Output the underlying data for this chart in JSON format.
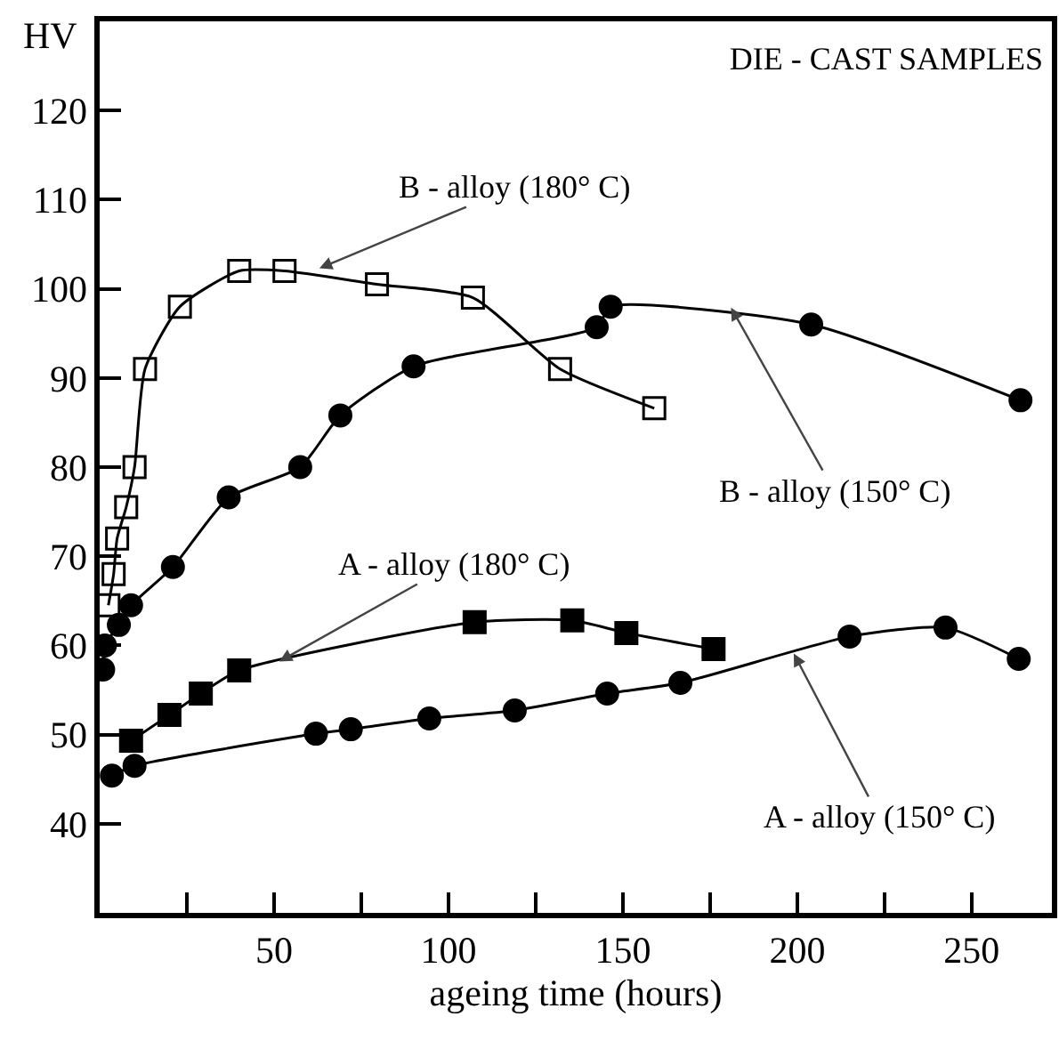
{
  "chart_data": {
    "type": "line",
    "title": "DIE - CAST SAMPLES",
    "xlabel": "ageing time (hours)",
    "ylabel": "HV",
    "xlim": [
      0,
      273
    ],
    "ylim": [
      30,
      130
    ],
    "xticks": [
      {
        "value": 25,
        "label": null
      },
      50,
      {
        "value": 75,
        "label": null
      },
      100,
      {
        "value": 125,
        "label": null
      },
      150,
      {
        "value": 175,
        "label": null
      },
      200,
      {
        "value": 225,
        "label": null
      },
      250
    ],
    "yticks": [
      40,
      50,
      60,
      70,
      80,
      90,
      100,
      110,
      120
    ],
    "series": [
      {
        "color": "#000000",
        "marker": "square-open",
        "x": [
          2.5,
          4,
          5,
          7.6,
          10,
          13,
          23,
          40,
          53,
          79.5,
          107,
          132,
          159
        ],
        "values": [
          64.5,
          68,
          72,
          75.5,
          80,
          91,
          98,
          102,
          102,
          100.5,
          99,
          91,
          86.6
        ]
      },
      {
        "color": "#000000",
        "marker": "circle",
        "x": [
          1,
          1.5,
          5.5,
          9,
          21,
          37,
          57.5,
          69,
          90,
          142.5,
          146.5,
          204,
          264
        ],
        "values": [
          57.3,
          60,
          62.3,
          64.5,
          68.8,
          76.6,
          80,
          85.8,
          91.3,
          95.7,
          98,
          96,
          87.5
        ]
      },
      {
        "color": "#000000",
        "marker": "square",
        "x": [
          9,
          20,
          29,
          40,
          107.5,
          135.5,
          151,
          176
        ],
        "values": [
          49.3,
          52.2,
          54.6,
          57.2,
          62.6,
          62.8,
          61.4,
          59.6
        ]
      },
      {
        "color": "#000000",
        "marker": "circle",
        "x": [
          3.5,
          10,
          62,
          72,
          94.5,
          119,
          145.5,
          166.5,
          215,
          242.5,
          263.5
        ],
        "values": [
          45.4,
          46.5,
          50.1,
          50.6,
          51.8,
          52.7,
          54.6,
          55.8,
          61,
          62,
          58.5
        ]
      }
    ],
    "annotations": [
      {
        "text": "B - alloy (180° C)",
        "x": 63,
        "y": 102.3
      },
      {
        "text": "B - alloy (150° C)",
        "x": 181,
        "y": 97.9
      },
      {
        "text": "A - alloy (180° C)",
        "x": 51.5,
        "y": 58.2
      },
      {
        "text": "A - alloy (150° C)",
        "x": 199,
        "y": 59.1
      }
    ]
  }
}
